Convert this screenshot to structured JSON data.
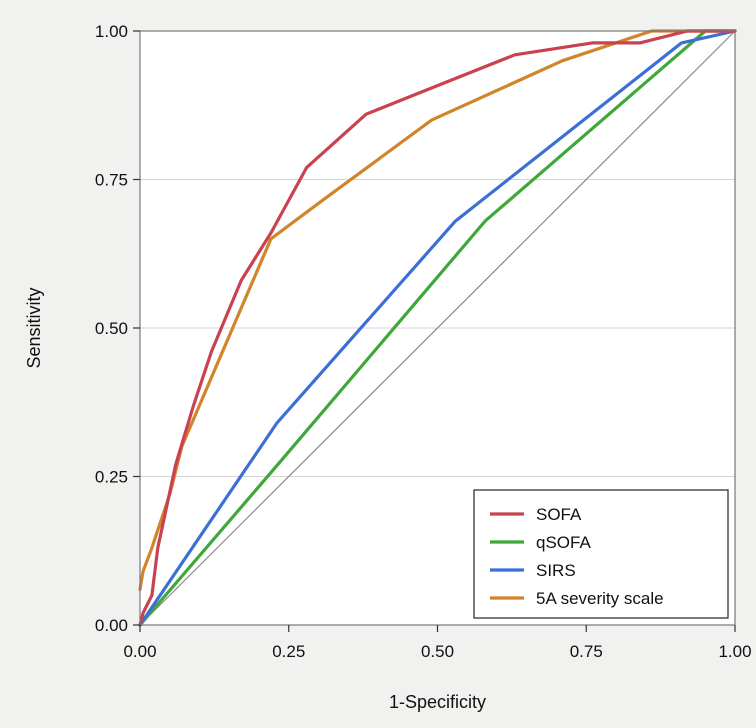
{
  "chart_data": {
    "type": "line",
    "xlabel": "1-Specificity",
    "ylabel": "Sensitivity",
    "xlim": [
      0,
      1
    ],
    "ylim": [
      0,
      1
    ],
    "x_ticks": [
      "0.00",
      "0.25",
      "0.50",
      "0.75",
      "1.00"
    ],
    "y_ticks": [
      "0.00",
      "0.25",
      "0.50",
      "0.75",
      "1.00"
    ],
    "grid": "horizontal",
    "legend_position": "bottom-right",
    "reference_line": {
      "x": [
        0,
        1
      ],
      "y": [
        0,
        1
      ],
      "color": "#888888"
    },
    "series": [
      {
        "name": "SOFA",
        "color": "#c8424f",
        "x": [
          0,
          0.005,
          0.02,
          0.03,
          0.06,
          0.09,
          0.12,
          0.17,
          0.22,
          0.28,
          0.38,
          0.48,
          0.63,
          0.76,
          0.84,
          0.92,
          1.0
        ],
        "y": [
          0,
          0.02,
          0.05,
          0.13,
          0.27,
          0.37,
          0.46,
          0.58,
          0.66,
          0.77,
          0.86,
          0.9,
          0.96,
          0.98,
          0.98,
          1.0,
          1.0
        ]
      },
      {
        "name": "qSOFA",
        "color": "#3fa83a",
        "x": [
          0,
          0.24,
          0.58,
          0.95,
          1.0
        ],
        "y": [
          0,
          0.28,
          0.68,
          1.0,
          1.0
        ]
      },
      {
        "name": "SIRS",
        "color": "#3c6fd6",
        "x": [
          0,
          0.23,
          0.53,
          0.91,
          1.0
        ],
        "y": [
          0,
          0.34,
          0.68,
          0.98,
          1.0
        ]
      },
      {
        "name": "5A severity scale",
        "color": "#d2842a",
        "x": [
          0,
          0.005,
          0.02,
          0.05,
          0.07,
          0.22,
          0.3,
          0.49,
          0.71,
          0.86,
          1.0
        ],
        "y": [
          0.06,
          0.09,
          0.13,
          0.22,
          0.3,
          0.65,
          0.71,
          0.85,
          0.95,
          1.0,
          1.0
        ]
      }
    ]
  }
}
